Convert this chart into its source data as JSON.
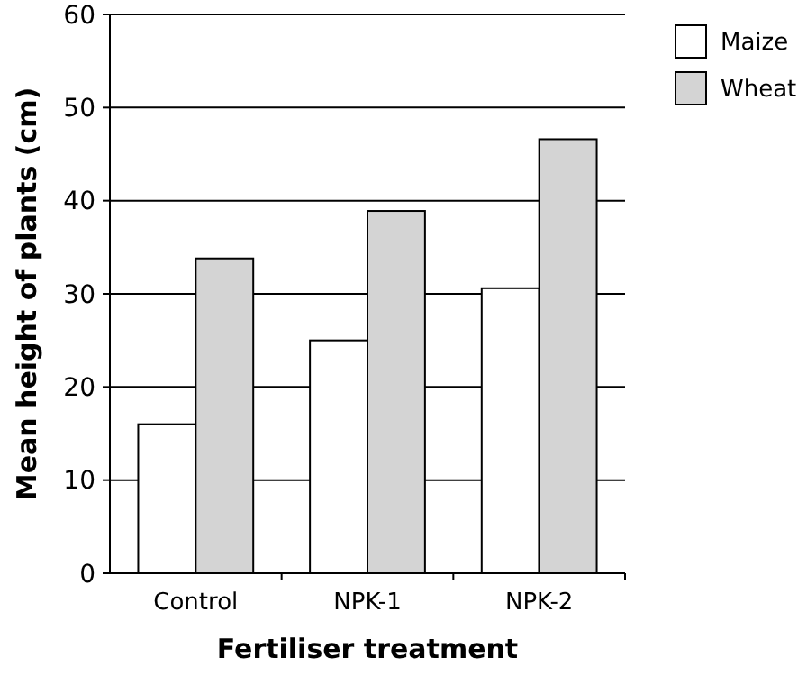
{
  "chart_data": {
    "type": "bar",
    "xlabel": "Fertiliser treatment",
    "ylabel": "Mean height of plants (cm)",
    "categories": [
      "Control",
      "NPK-1",
      "NPK-2"
    ],
    "series": [
      {
        "name": "Maize",
        "color": "#ffffff",
        "values": [
          16,
          25,
          30.6
        ]
      },
      {
        "name": "Wheat",
        "color": "#d4d4d4",
        "values": [
          33.8,
          38.9,
          46.6
        ]
      }
    ],
    "ylim": [
      0,
      60
    ],
    "yticks": [
      0,
      10,
      20,
      30,
      40,
      50,
      60
    ],
    "grid": "y",
    "legend": "top right"
  }
}
